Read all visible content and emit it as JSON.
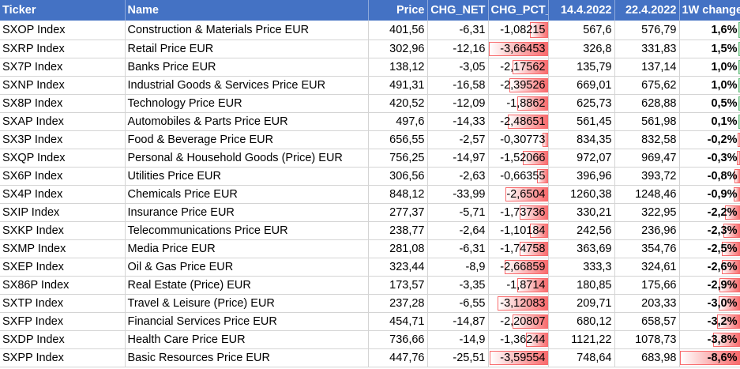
{
  "colors": {
    "header_bg": "#4472C4",
    "negative_bar": "#f8696b",
    "positive_bar": "#63be7b"
  },
  "headers": [
    "Ticker",
    "Name",
    "Price",
    "CHG_NET",
    "CHG_PCT_",
    "14.4.2022",
    "22.4.2022",
    "1W change"
  ],
  "rows": [
    {
      "ticker": "SXOP Index",
      "name": "Construction & Materials Price EUR",
      "price": "401,56",
      "chg_net": "-6,31",
      "chg_pct": "-1,08215",
      "d1": "567,6",
      "d2": "576,79",
      "w1": "1,6%",
      "pct_level": 0.3,
      "w1_level": 0.02,
      "w1_positive": true
    },
    {
      "ticker": "SXRP Index",
      "name": "Retail Price EUR",
      "price": "302,96",
      "chg_net": "-12,16",
      "chg_pct": "-3,66453",
      "d1": "326,8",
      "d2": "331,83",
      "w1": "1,5%",
      "pct_level": 1.0,
      "w1_level": 0.02,
      "w1_positive": true
    },
    {
      "ticker": "SX7P Index",
      "name": "Banks Price EUR",
      "price": "138,12",
      "chg_net": "-3,05",
      "chg_pct": "-2,17562",
      "d1": "135,79",
      "d2": "137,14",
      "w1": "1,0%",
      "pct_level": 0.59,
      "w1_level": 0.015,
      "w1_positive": true
    },
    {
      "ticker": "SXNP Index",
      "name": "Industrial Goods & Services Price EUR",
      "price": "491,31",
      "chg_net": "-16,58",
      "chg_pct": "-2,39526",
      "d1": "669,01",
      "d2": "675,62",
      "w1": "1,0%",
      "pct_level": 0.65,
      "w1_level": 0.015,
      "w1_positive": true
    },
    {
      "ticker": "SX8P Index",
      "name": "Technology Price EUR",
      "price": "420,52",
      "chg_net": "-12,09",
      "chg_pct": "-1,8862",
      "d1": "625,73",
      "d2": "628,88",
      "w1": "0,5%",
      "pct_level": 0.51,
      "w1_level": 0.01,
      "w1_positive": true
    },
    {
      "ticker": "SXAP Index",
      "name": "Automobiles & Parts Price EUR",
      "price": "497,6",
      "chg_net": "-14,33",
      "chg_pct": "-2,48651",
      "d1": "561,45",
      "d2": "561,98",
      "w1": "0,1%",
      "pct_level": 0.68,
      "w1_level": 0.005,
      "w1_positive": true
    },
    {
      "ticker": "SX3P Index",
      "name": "Food & Beverage Price EUR",
      "price": "656,55",
      "chg_net": "-2,57",
      "chg_pct": "-0,30773",
      "d1": "834,35",
      "d2": "832,58",
      "w1": "-0,2%",
      "pct_level": 0.09,
      "w1_level": 0.03,
      "w1_positive": false
    },
    {
      "ticker": "SXQP Index",
      "name": "Personal & Household Goods (Price) EUR",
      "price": "756,25",
      "chg_net": "-14,97",
      "chg_pct": "-1,52066",
      "d1": "972,07",
      "d2": "969,47",
      "w1": "-0,3%",
      "pct_level": 0.42,
      "w1_level": 0.04,
      "w1_positive": false
    },
    {
      "ticker": "SX6P Index",
      "name": "Utilities Price EUR",
      "price": "306,56",
      "chg_net": "-2,63",
      "chg_pct": "-0,66355",
      "d1": "396,96",
      "d2": "393,72",
      "w1": "-0,8%",
      "pct_level": 0.18,
      "w1_level": 0.09,
      "w1_positive": false
    },
    {
      "ticker": "SX4P Index",
      "name": "Chemicals Price EUR",
      "price": "848,12",
      "chg_net": "-33,99",
      "chg_pct": "-2,6504",
      "d1": "1260,38",
      "d2": "1248,46",
      "w1": "-0,9%",
      "pct_level": 0.72,
      "w1_level": 0.1,
      "w1_positive": false
    },
    {
      "ticker": "SXIP Index",
      "name": "Insurance Price EUR",
      "price": "277,37",
      "chg_net": "-5,71",
      "chg_pct": "-1,73736",
      "d1": "330,21",
      "d2": "322,95",
      "w1": "-2,2%",
      "pct_level": 0.47,
      "w1_level": 0.25,
      "w1_positive": false
    },
    {
      "ticker": "SXKP Index",
      "name": "Telecommunications Price EUR",
      "price": "238,77",
      "chg_net": "-2,64",
      "chg_pct": "-1,10184",
      "d1": "242,56",
      "d2": "236,96",
      "w1": "-2,3%",
      "pct_level": 0.3,
      "w1_level": 0.27,
      "w1_positive": false
    },
    {
      "ticker": "SXMP Index",
      "name": "Media Price EUR",
      "price": "281,08",
      "chg_net": "-6,31",
      "chg_pct": "-1,74758",
      "d1": "363,69",
      "d2": "354,76",
      "w1": "-2,5%",
      "pct_level": 0.48,
      "w1_level": 0.29,
      "w1_positive": false
    },
    {
      "ticker": "SXEP Index",
      "name": "Oil & Gas Price EUR",
      "price": "323,44",
      "chg_net": "-8,9",
      "chg_pct": "-2,66859",
      "d1": "333,3",
      "d2": "324,61",
      "w1": "-2,6%",
      "pct_level": 0.73,
      "w1_level": 0.3,
      "w1_positive": false
    },
    {
      "ticker": "SX86P Index",
      "name": "Real Estate (Price) EUR",
      "price": "173,57",
      "chg_net": "-3,35",
      "chg_pct": "-1,8714",
      "d1": "180,85",
      "d2": "175,66",
      "w1": "-2,9%",
      "pct_level": 0.51,
      "w1_level": 0.34,
      "w1_positive": false
    },
    {
      "ticker": "SXTP Index",
      "name": "Travel & Leisure (Price) EUR",
      "price": "237,28",
      "chg_net": "-6,55",
      "chg_pct": "-3,12083",
      "d1": "209,71",
      "d2": "203,33",
      "w1": "-3,0%",
      "pct_level": 0.85,
      "w1_level": 0.35,
      "w1_positive": false
    },
    {
      "ticker": "SXFP Index",
      "name": "Financial Services Price EUR",
      "price": "454,71",
      "chg_net": "-14,87",
      "chg_pct": "-2,20807",
      "d1": "680,12",
      "d2": "658,57",
      "w1": "-3,2%",
      "pct_level": 0.6,
      "w1_level": 0.37,
      "w1_positive": false
    },
    {
      "ticker": "SXDP Index",
      "name": "Health Care Price EUR",
      "price": "736,66",
      "chg_net": "-14,9",
      "chg_pct": "-1,36244",
      "d1": "1121,22",
      "d2": "1078,73",
      "w1": "-3,8%",
      "pct_level": 0.37,
      "w1_level": 0.44,
      "w1_positive": false
    },
    {
      "ticker": "SXPP Index",
      "name": "Basic Resources Price EUR",
      "price": "447,76",
      "chg_net": "-25,51",
      "chg_pct": "-3,59554",
      "d1": "748,64",
      "d2": "683,98",
      "w1": "-8,6%",
      "pct_level": 0.98,
      "w1_level": 1.0,
      "w1_positive": false
    }
  ]
}
